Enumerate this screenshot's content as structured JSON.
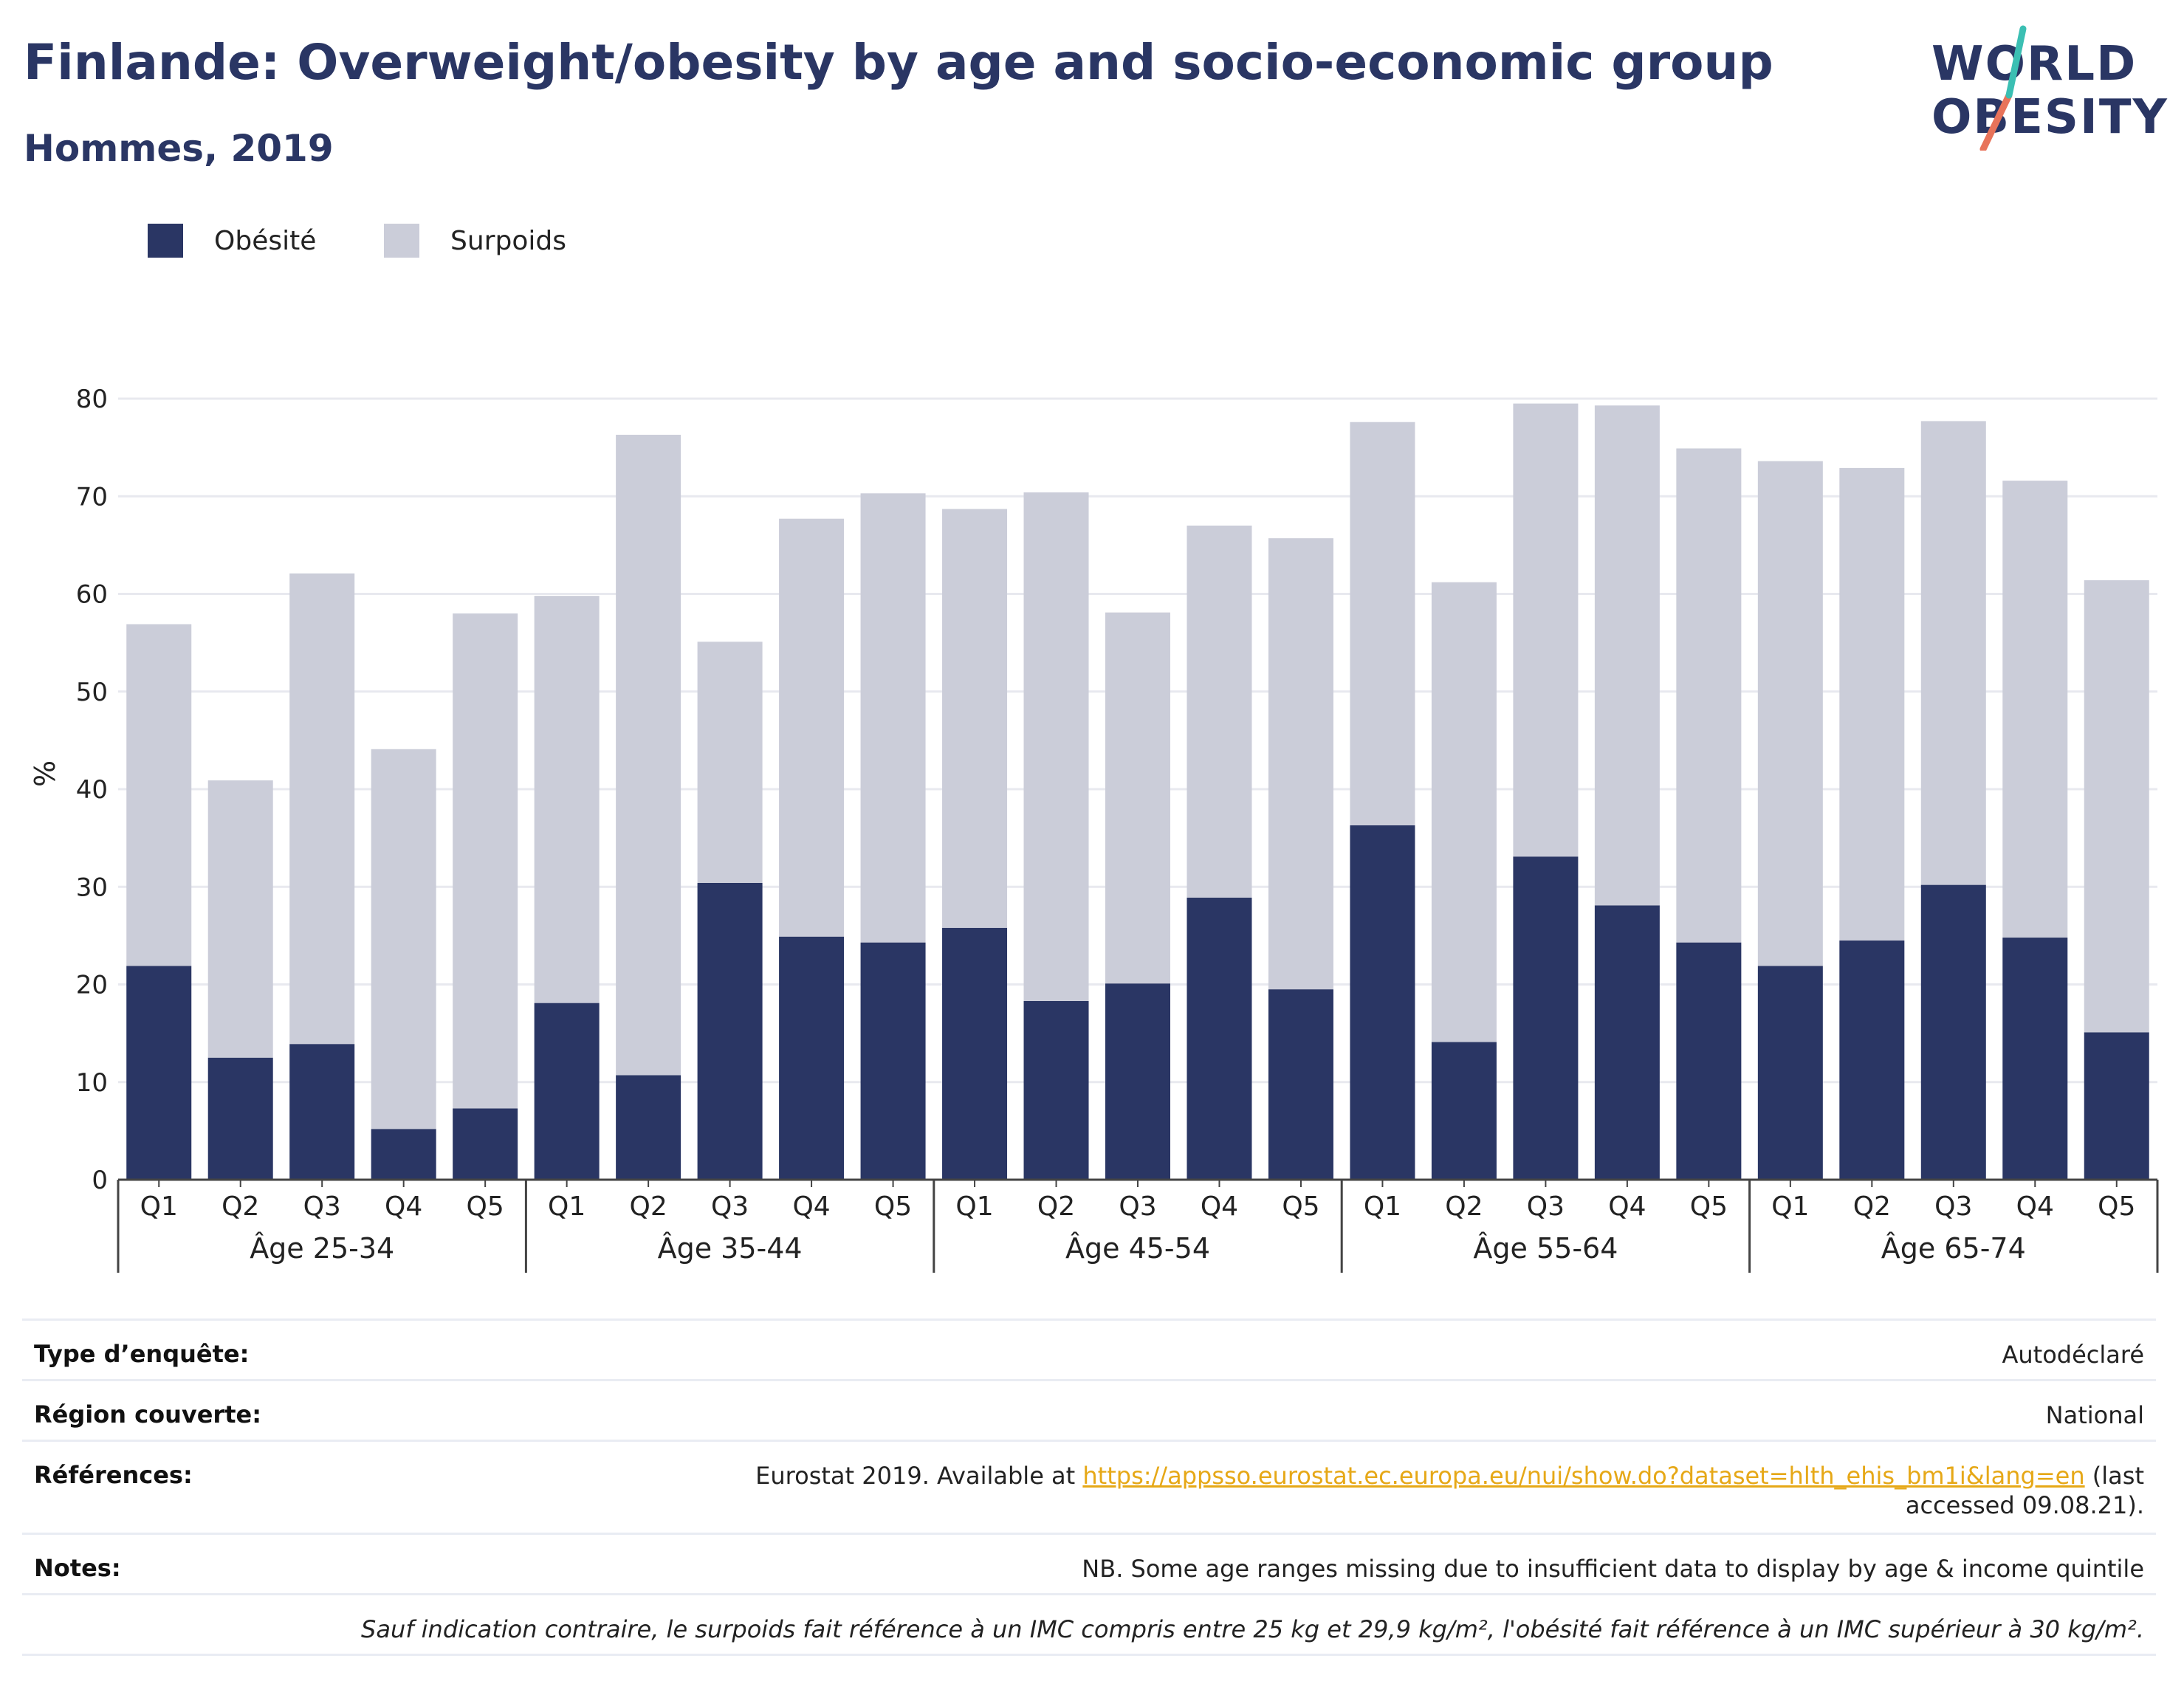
{
  "header": {
    "title": "Finlande: Overweight/obesity by age and socio-economic group",
    "subtitle": "Hommes, 2019"
  },
  "logo": {
    "line1": "WORLD",
    "line2": "OBESITY",
    "colors": {
      "text": "#2a3664",
      "slash_teal": "#3bbfb3",
      "slash_coral": "#e8735a"
    }
  },
  "legend": [
    {
      "label": "Obésité",
      "color": "#2a3664"
    },
    {
      "label": "Surpoids",
      "color": "#cbcdd9"
    }
  ],
  "chart_data": {
    "type": "bar",
    "stacked": true,
    "ylabel": "%",
    "ylim": [
      0,
      80
    ],
    "yticks": [
      0,
      10,
      20,
      30,
      40,
      50,
      60,
      70,
      80
    ],
    "grid": true,
    "legend_position": "top-left",
    "groups": [
      "Âge 25-34",
      "Âge 35-44",
      "Âge 45-54",
      "Âge 55-64",
      "Âge 65-74"
    ],
    "categories": [
      "Q1",
      "Q2",
      "Q3",
      "Q4",
      "Q5"
    ],
    "series": [
      {
        "name": "Obésité",
        "color": "#2a3664",
        "values": [
          [
            21.9,
            12.5,
            13.9,
            5.2,
            7.3
          ],
          [
            18.1,
            10.7,
            30.4,
            24.9,
            24.3
          ],
          [
            25.8,
            18.3,
            20.1,
            28.9,
            19.5
          ],
          [
            36.3,
            14.1,
            33.1,
            28.1,
            24.3
          ],
          [
            21.9,
            24.5,
            30.2,
            24.8,
            15.1
          ]
        ]
      },
      {
        "name": "Surpoids",
        "color": "#cbcdd9",
        "values": [
          [
            35.0,
            28.4,
            48.2,
            38.9,
            50.7
          ],
          [
            41.7,
            65.6,
            24.7,
            42.8,
            46.0
          ],
          [
            42.9,
            52.1,
            38.0,
            38.1,
            46.2
          ],
          [
            41.3,
            47.1,
            46.4,
            51.2,
            50.6
          ],
          [
            51.7,
            48.4,
            47.5,
            46.8,
            46.3
          ]
        ]
      }
    ]
  },
  "info_table": {
    "survey_type": {
      "label": "Type d’enquête:",
      "value": "Autodéclaré"
    },
    "region": {
      "label": "Région couverte:",
      "value": "National"
    },
    "references": {
      "label": "Références:",
      "prefix": "Eurostat 2019. Available at ",
      "link": "https://appsso.eurostat.ec.europa.eu/nui/show.do?dataset=hlth_ehis_bm1i&lang=en",
      "suffix": " (last accessed 09.08.21)."
    },
    "notes": {
      "label": "Notes:",
      "value": "NB. Some age ranges missing due to insufficient data to display by age & income quintile"
    },
    "definition": "Sauf indication contraire, le surpoids fait référence à un IMC compris entre 25 kg et 29,9 kg/m², l'obésité fait référence à un IMC supérieur à 30 kg/m²."
  }
}
